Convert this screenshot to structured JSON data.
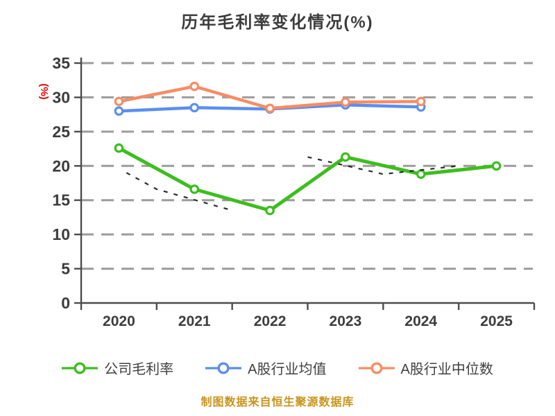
{
  "caption": {
    "text": "制图数据来自恒生聚源数据库",
    "color": "#c8941e"
  },
  "axis": {
    "spine_color": "#4c4c4c",
    "tick_label_color": "#3c3c3c",
    "grid_color": "#9c9c9c",
    "grid_style": "dashed"
  },
  "chart_data": {
    "type": "line",
    "title": "历年毛利率变化情况(%)",
    "title_color": "#3c3c3c",
    "xlabel": "",
    "ylabel": "(%)",
    "ylabel_color": "#e60000",
    "categories": [
      "2020",
      "2021",
      "2022",
      "2023",
      "2024",
      "2025"
    ],
    "ylim": [
      0,
      35
    ],
    "yticks": [
      0,
      5,
      10,
      15,
      20,
      25,
      30,
      35
    ],
    "grid": "horizontal-dashed",
    "legend_position": "bottom",
    "series": [
      {
        "id": "company-gross-margin",
        "name": "公司毛利率",
        "color": "#3cbe1e",
        "marker": "circle-open-white",
        "values": [
          22.6,
          16.6,
          13.5,
          21.3,
          18.8,
          20.0
        ]
      },
      {
        "id": "industry-mean",
        "name": "A股行业均值",
        "color": "#5b8ef0",
        "marker": "circle-open-white",
        "values": [
          28.0,
          28.5,
          28.3,
          28.9,
          28.6,
          null
        ]
      },
      {
        "id": "industry-median",
        "name": "A股行业中位数",
        "color": "#f88c64",
        "marker": "circle-open-white",
        "values": [
          29.4,
          31.6,
          28.4,
          29.3,
          29.4,
          null
        ]
      }
    ],
    "overlay_dashed": {
      "color": "#141414",
      "segments": [
        [
          [
            0.6,
            19.0
          ],
          [
            1,
            16.6
          ],
          [
            2,
            13.5
          ]
        ],
        [
          [
            3,
            21.3
          ],
          [
            4,
            18.8
          ],
          [
            5,
            20.0
          ]
        ]
      ]
    }
  }
}
